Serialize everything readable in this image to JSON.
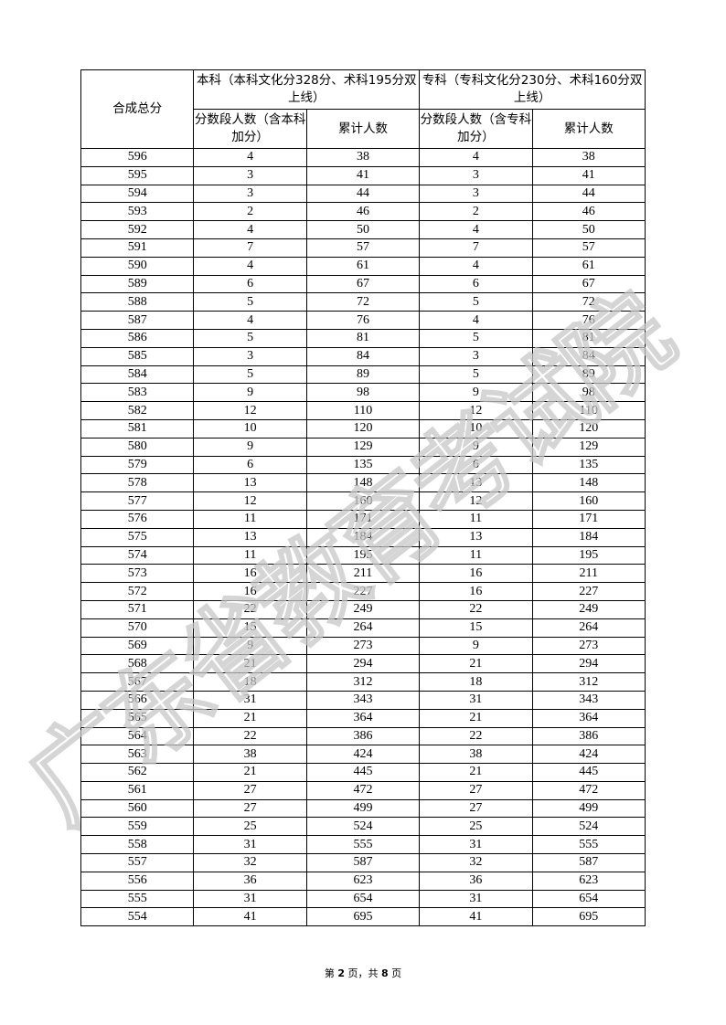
{
  "header": {
    "score_col": "合成总分",
    "benke_group": "本科（本科文化分328分、术科195分双上线）",
    "zhuanke_group": "专科（专科文化分230分、术科160分双上线）",
    "benke_segment": "分数段人数（含本科加分）",
    "benke_cumulative": "累计人数",
    "zhuanke_segment": "分数段人数（含专科加分）",
    "zhuanke_cumulative": "累计人数"
  },
  "rows": [
    [
      "596",
      "4",
      "38",
      "4",
      "38"
    ],
    [
      "595",
      "3",
      "41",
      "3",
      "41"
    ],
    [
      "594",
      "3",
      "44",
      "3",
      "44"
    ],
    [
      "593",
      "2",
      "46",
      "2",
      "46"
    ],
    [
      "592",
      "4",
      "50",
      "4",
      "50"
    ],
    [
      "591",
      "7",
      "57",
      "7",
      "57"
    ],
    [
      "590",
      "4",
      "61",
      "4",
      "61"
    ],
    [
      "589",
      "6",
      "67",
      "6",
      "67"
    ],
    [
      "588",
      "5",
      "72",
      "5",
      "72"
    ],
    [
      "587",
      "4",
      "76",
      "4",
      "76"
    ],
    [
      "586",
      "5",
      "81",
      "5",
      "81"
    ],
    [
      "585",
      "3",
      "84",
      "3",
      "84"
    ],
    [
      "584",
      "5",
      "89",
      "5",
      "89"
    ],
    [
      "583",
      "9",
      "98",
      "9",
      "98"
    ],
    [
      "582",
      "12",
      "110",
      "12",
      "110"
    ],
    [
      "581",
      "10",
      "120",
      "10",
      "120"
    ],
    [
      "580",
      "9",
      "129",
      "9",
      "129"
    ],
    [
      "579",
      "6",
      "135",
      "6",
      "135"
    ],
    [
      "578",
      "13",
      "148",
      "13",
      "148"
    ],
    [
      "577",
      "12",
      "160",
      "12",
      "160"
    ],
    [
      "576",
      "11",
      "171",
      "11",
      "171"
    ],
    [
      "575",
      "13",
      "184",
      "13",
      "184"
    ],
    [
      "574",
      "11",
      "195",
      "11",
      "195"
    ],
    [
      "573",
      "16",
      "211",
      "16",
      "211"
    ],
    [
      "572",
      "16",
      "227",
      "16",
      "227"
    ],
    [
      "571",
      "22",
      "249",
      "22",
      "249"
    ],
    [
      "570",
      "15",
      "264",
      "15",
      "264"
    ],
    [
      "569",
      "9",
      "273",
      "9",
      "273"
    ],
    [
      "568",
      "21",
      "294",
      "21",
      "294"
    ],
    [
      "567",
      "18",
      "312",
      "18",
      "312"
    ],
    [
      "566",
      "31",
      "343",
      "31",
      "343"
    ],
    [
      "565",
      "21",
      "364",
      "21",
      "364"
    ],
    [
      "564",
      "22",
      "386",
      "22",
      "386"
    ],
    [
      "563",
      "38",
      "424",
      "38",
      "424"
    ],
    [
      "562",
      "21",
      "445",
      "21",
      "445"
    ],
    [
      "561",
      "27",
      "472",
      "27",
      "472"
    ],
    [
      "560",
      "27",
      "499",
      "27",
      "499"
    ],
    [
      "559",
      "25",
      "524",
      "25",
      "524"
    ],
    [
      "558",
      "31",
      "555",
      "31",
      "555"
    ],
    [
      "557",
      "32",
      "587",
      "32",
      "587"
    ],
    [
      "556",
      "36",
      "623",
      "36",
      "623"
    ],
    [
      "555",
      "31",
      "654",
      "31",
      "654"
    ],
    [
      "554",
      "41",
      "695",
      "41",
      "695"
    ]
  ],
  "footer": {
    "prefix": "第 ",
    "page": "2",
    "middle": " 页，共 ",
    "total": "8",
    "suffix": " 页"
  },
  "watermark": {
    "text": "广东省教育考试院",
    "color": "#c8c8c8"
  }
}
